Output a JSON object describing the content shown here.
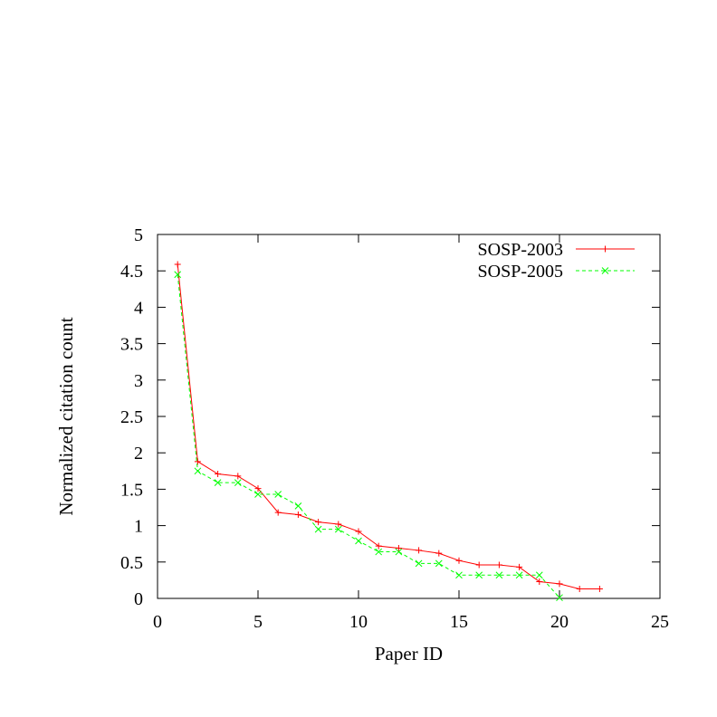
{
  "chart_data": {
    "type": "line",
    "title": "",
    "xlabel": "Paper ID",
    "ylabel": "Normalized citation count",
    "xlim": [
      0,
      25
    ],
    "ylim": [
      0,
      5
    ],
    "xticks": [
      0,
      5,
      10,
      15,
      20,
      25
    ],
    "yticks": [
      0,
      0.5,
      1,
      1.5,
      2,
      2.5,
      3,
      3.5,
      4,
      4.5,
      5
    ],
    "xtick_labels": [
      "0",
      "5",
      "10",
      "15",
      "20",
      "25"
    ],
    "ytick_labels": [
      "0",
      "0.5",
      "1",
      "1.5",
      "2",
      "2.5",
      "3",
      "3.5",
      "4",
      "4.5",
      "5"
    ],
    "grid": false,
    "legend_position": "top-right",
    "series": [
      {
        "name": "SOSP-2003",
        "color": "#ff0000",
        "line_style": "solid",
        "marker": "plus",
        "x": [
          1,
          2,
          3,
          4,
          5,
          6,
          7,
          8,
          9,
          10,
          11,
          12,
          13,
          14,
          15,
          16,
          17,
          18,
          19,
          20,
          21,
          22
        ],
        "y": [
          4.59,
          1.88,
          1.71,
          1.68,
          1.51,
          1.18,
          1.15,
          1.05,
          1.02,
          0.92,
          0.72,
          0.69,
          0.66,
          0.62,
          0.52,
          0.46,
          0.46,
          0.43,
          0.23,
          0.2,
          0.13,
          0.13
        ]
      },
      {
        "name": "SOSP-2005",
        "color": "#00ff00",
        "line_style": "dashed",
        "marker": "x",
        "x": [
          1,
          2,
          3,
          4,
          5,
          6,
          7,
          8,
          9,
          10,
          11,
          12,
          13,
          14,
          15,
          16,
          17,
          18,
          19,
          20
        ],
        "y": [
          4.45,
          1.75,
          1.59,
          1.59,
          1.43,
          1.43,
          1.27,
          0.95,
          0.95,
          0.79,
          0.64,
          0.64,
          0.48,
          0.48,
          0.32,
          0.32,
          0.32,
          0.32,
          0.32,
          0.01
        ]
      }
    ]
  }
}
